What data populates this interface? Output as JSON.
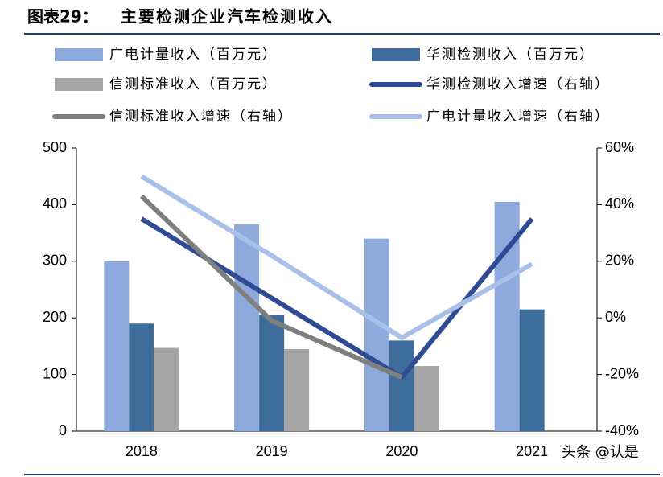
{
  "chart_data": {
    "type": "bar",
    "title_label": "图表29：",
    "title": "主要检测企业汽车检测收入",
    "watermark": "头条 @认是",
    "categories": [
      "2018",
      "2019",
      "2020",
      "2021"
    ],
    "series": [
      {
        "name": "广电计量收入（百万元）",
        "type": "bar",
        "color": "#8eaadc",
        "values": [
          300,
          365,
          340,
          405
        ]
      },
      {
        "name": "华测检测收入（百万元）",
        "type": "bar",
        "color": "#3f6d9b",
        "values": [
          190,
          205,
          160,
          215
        ]
      },
      {
        "name": "信测标准收入（百万元）",
        "type": "bar",
        "color": "#a5a5a5",
        "values": [
          147,
          145,
          115,
          null
        ]
      },
      {
        "name": "华测检测收入增速（右轴）",
        "type": "line",
        "axis": "y2",
        "color": "#2f4b94",
        "values": [
          35,
          7,
          -21,
          35
        ]
      },
      {
        "name": "信测标准收入增速（右轴）",
        "type": "line",
        "axis": "y2",
        "color": "#7f7f7f",
        "values": [
          43,
          -1,
          -21,
          null
        ]
      },
      {
        "name": "广电计量收入增速（右轴）",
        "type": "line",
        "axis": "y2",
        "color": "#a9c0ea",
        "values": [
          50,
          22,
          -7,
          19
        ]
      }
    ],
    "ylim": [
      0,
      500
    ],
    "yticks": [
      0,
      100,
      200,
      300,
      400,
      500
    ],
    "y2lim": [
      -40,
      60
    ],
    "y2ticks": [
      {
        "value": -40,
        "label": "-40%"
      },
      {
        "value": -20,
        "label": "-20%"
      },
      {
        "value": 0,
        "label": "0%"
      },
      {
        "value": 20,
        "label": "20%"
      },
      {
        "value": 40,
        "label": "40%"
      },
      {
        "value": 60,
        "label": "60%"
      }
    ]
  }
}
